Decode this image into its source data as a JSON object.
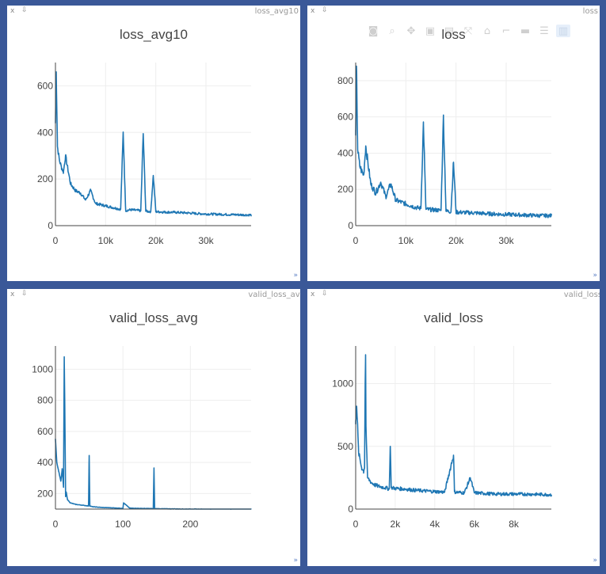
{
  "colors": {
    "background": "#3a5898",
    "pane": "#ffffff",
    "line": "#1f77b4",
    "grid": "#eeeeee",
    "axis": "#444444"
  },
  "pane_controls": {
    "close": "x",
    "pin": "⇩",
    "resize": "»"
  },
  "modebar": {
    "icons": [
      "camera-icon",
      "zoom-icon",
      "pan-icon",
      "box-select-icon",
      "lasso-icon",
      "autoscale-icon",
      "home-icon",
      "spike-lines-icon",
      "hover-closest-icon",
      "hover-compare-icon",
      "plotly-logo-icon"
    ]
  },
  "panes": [
    {
      "name": "loss_avg10"
    },
    {
      "name": "loss"
    },
    {
      "name": "valid_loss_avg"
    },
    {
      "name": "valid_loss"
    }
  ],
  "chart_data": [
    {
      "type": "line",
      "title": "loss_avg10",
      "xlabel": "",
      "ylabel": "",
      "xlim": [
        0,
        39000
      ],
      "ylim": [
        0,
        700
      ],
      "xticks": [
        0,
        10000,
        20000,
        30000
      ],
      "xtick_labels": [
        "0",
        "10k",
        "20k",
        "30k"
      ],
      "yticks": [
        0,
        200,
        400,
        600
      ],
      "ytick_labels": [
        "0",
        "200",
        "400",
        "600"
      ],
      "grid": true,
      "series": [
        {
          "x": [
            0,
            150,
            400,
            800,
            1200,
            1600,
            2000,
            3000,
            4000,
            5000,
            6000,
            7000,
            8000,
            9000,
            10000,
            11000,
            12000,
            13000,
            13500,
            14000,
            15000,
            16000,
            17000,
            17500,
            18000,
            19000,
            19500,
            20000,
            22000,
            24000,
            26000,
            28000,
            30000,
            32000,
            34000,
            36000,
            38000,
            39000
          ],
          "y": [
            440,
            660,
            340,
            280,
            250,
            230,
            300,
            180,
            150,
            140,
            110,
            150,
            95,
            90,
            85,
            80,
            75,
            70,
            400,
            65,
            68,
            66,
            64,
            395,
            62,
            60,
            215,
            60,
            58,
            57,
            55,
            52,
            50,
            49,
            48,
            47,
            46,
            46
          ],
          "noise": 18
        }
      ]
    },
    {
      "type": "line",
      "title": "loss",
      "xlabel": "",
      "ylabel": "",
      "xlim": [
        0,
        39000
      ],
      "ylim": [
        0,
        900
      ],
      "xticks": [
        0,
        10000,
        20000,
        30000
      ],
      "xtick_labels": [
        "0",
        "10k",
        "20k",
        "30k"
      ],
      "yticks": [
        0,
        200,
        400,
        600,
        800
      ],
      "ytick_labels": [
        "0",
        "200",
        "400",
        "600",
        "800"
      ],
      "grid": true,
      "series": [
        {
          "x": [
            0,
            150,
            400,
            800,
            1200,
            1600,
            2000,
            3000,
            4000,
            5000,
            6000,
            7000,
            8000,
            9000,
            10000,
            11000,
            12000,
            13000,
            13500,
            14000,
            15000,
            16000,
            17000,
            17500,
            18000,
            19000,
            19500,
            20000,
            22000,
            24000,
            26000,
            28000,
            30000,
            32000,
            34000,
            36000,
            38000,
            39000
          ],
          "y": [
            500,
            880,
            420,
            330,
            300,
            280,
            440,
            230,
            180,
            240,
            160,
            230,
            140,
            130,
            120,
            110,
            100,
            95,
            565,
            90,
            88,
            86,
            84,
            600,
            80,
            78,
            350,
            75,
            72,
            70,
            66,
            64,
            62,
            60,
            58,
            56,
            55,
            55
          ],
          "noise": 40
        }
      ]
    },
    {
      "type": "line",
      "title": "valid_loss_avg",
      "xlabel": "",
      "ylabel": "",
      "xlim": [
        0,
        290
      ],
      "ylim": [
        100,
        1150
      ],
      "xticks": [
        0,
        100,
        200
      ],
      "xtick_labels": [
        "0",
        "100",
        "200"
      ],
      "yticks": [
        200,
        400,
        600,
        800,
        1000
      ],
      "ytick_labels": [
        "200",
        "400",
        "600",
        "800",
        "1000"
      ],
      "grid": true,
      "series": [
        {
          "x": [
            0,
            2,
            5,
            8,
            10,
            12,
            13,
            14,
            15,
            16,
            18,
            22,
            30,
            40,
            49,
            50,
            51,
            55,
            70,
            85,
            100,
            101,
            110,
            130,
            145,
            146,
            147,
            160,
            180,
            200,
            230,
            260,
            290
          ],
          "y": [
            550,
            400,
            340,
            280,
            360,
            240,
            1080,
            700,
            180,
            210,
            160,
            140,
            130,
            125,
            120,
            445,
            120,
            115,
            110,
            108,
            105,
            140,
            106,
            104,
            103,
            365,
            103,
            102,
            101,
            100,
            99,
            99,
            98
          ],
          "noise": 4
        }
      ]
    },
    {
      "type": "line",
      "title": "valid_loss",
      "xlabel": "",
      "ylabel": "",
      "xlim": [
        0,
        9900
      ],
      "ylim": [
        0,
        1300
      ],
      "xticks": [
        0,
        2000,
        4000,
        6000,
        8000
      ],
      "xtick_labels": [
        "0",
        "2k",
        "4k",
        "6k",
        "8k"
      ],
      "yticks": [
        0,
        500,
        1000
      ],
      "ytick_labels": [
        "0",
        "500",
        "1000"
      ],
      "grid": true,
      "series": [
        {
          "x": [
            0,
            50,
            150,
            300,
            400,
            450,
            480,
            500,
            520,
            600,
            800,
            1000,
            1200,
            1500,
            1700,
            1750,
            1800,
            2000,
            2500,
            3000,
            3500,
            4000,
            4500,
            4950,
            5000,
            5050,
            5500,
            5800,
            6000,
            6500,
            7000,
            8000,
            9000,
            9900
          ],
          "y": [
            700,
            820,
            450,
            330,
            300,
            340,
            1000,
            1230,
            650,
            250,
            210,
            190,
            180,
            170,
            160,
            500,
            170,
            165,
            160,
            150,
            145,
            140,
            135,
            430,
            140,
            135,
            130,
            250,
            130,
            125,
            120,
            120,
            118,
            115
          ],
          "noise": 45
        }
      ]
    }
  ]
}
